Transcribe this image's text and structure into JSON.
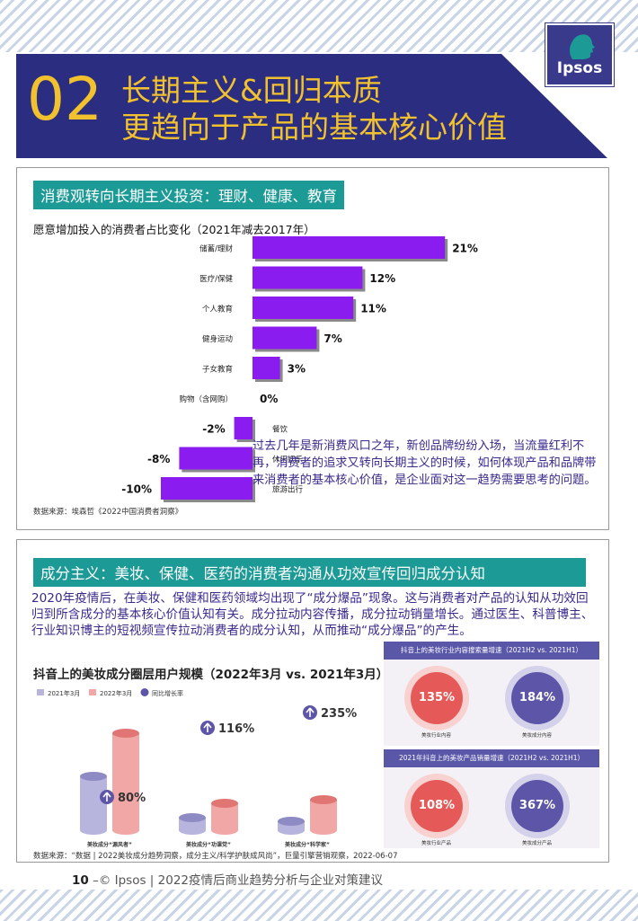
{
  "header": {
    "number": "02",
    "title_line1": "长期主义&回归本质",
    "title_line2": "更趋向于产品的基本核心价值",
    "logo_text": "Ipsos"
  },
  "colors": {
    "banner": "#2b2e80",
    "accent_yellow": "#f2c12e",
    "teal": "#1c9a96",
    "bar_purple": "#8b1cf0",
    "text_purple": "#3a2a8c",
    "red": "#e55a58"
  },
  "panel1": {
    "title": "消费观转向长期主义投资：理财、健康、教育",
    "chart_title": "愿意增加投入的消费者占比变化（2021年减去2017年）",
    "source": "数据来源：埃森哲《2022中国消费者洞察》",
    "paragraph": "过去几年是新消费风口之年，新创品牌纷纷入场，当流量红利不再，消费者的追求又转向长期主义的时候，如何体现产品和品牌带来消费者的基本核心价值，是企业面对这一趋势需要思考的问题。"
  },
  "panel2": {
    "title": "成分主义：美妆、保健、医药的消费者沟通从功效宣传回归成分认知",
    "paragraph": "2020年疫情后，在美妆、保健和医药领域均出现了“成分爆品”现象。这与消费者对产品的认知从功效回归到所含成分的基本核心价值认知有关。成分拉动内容传播，成分拉动销量增长。通过医生、科普博主、行业知识博主的短视频宣传拉动消费者的成分认知，从而推动“成分爆品”的产生。",
    "chart_title": "抖音上的美妆成分圈层用户规模（2022年3月 vs. 2021年3月）",
    "source": "数据来源：“数据 | 2022美妆成分趋势洞察，成分主义/科学护肤成风尚”，巨量引擎营销观察，2022-06-07",
    "info": {
      "head1": "抖音上的美妆行业内容搜索量增速（2021H2 vs. 2021H1）",
      "c1_value": "135%",
      "c1_label": "美妆行业内容",
      "c2_value": "184%",
      "c2_label": "美妆成分内容",
      "head2": "2021年抖音上的美妆产品销量增速（2021H2 vs. 2021H1）",
      "c3_value": "108%",
      "c3_label": "美妆行业产品",
      "c4_value": "367%",
      "c4_label": "美妆成分产品"
    }
  },
  "footer": {
    "page": "10",
    "text": "–© Ipsos | 2022疫情后商业趋势分析与企业对策建议"
  },
  "chart_data": [
    {
      "type": "bar",
      "orientation": "horizontal",
      "title": "愿意增加投入的消费者占比变化（2021年减去2017年）",
      "categories": [
        "储蓄/理财",
        "医疗/保健",
        "个人教育",
        "健身运动",
        "子女教育",
        "购物（含网购）",
        "餐饮",
        "休闲娱乐",
        "旅游出行"
      ],
      "values": [
        21,
        12,
        11,
        7,
        3,
        0,
        -2,
        -8,
        -10
      ],
      "value_labels": [
        "21%",
        "12%",
        "11%",
        "7%",
        "3%",
        "0%",
        "-2%",
        "-8%",
        "-10%"
      ],
      "unit": "%"
    },
    {
      "type": "bar",
      "title": "抖音上的美妆成分圈层用户规模（2022年3月 vs. 2021年3月）",
      "categories": [
        "美妆成分“源风者”",
        "美妆成分“功课党”",
        "美妆成分“科学家”"
      ],
      "series": [
        {
          "name": "2021年3月",
          "values": [
            60,
            14,
            10
          ]
        },
        {
          "name": "2022年3月",
          "values": [
            108,
            30,
            34
          ]
        }
      ],
      "growth": {
        "name": "同比增长率",
        "labels": [
          "80%",
          "116%",
          "235%"
        ],
        "values": [
          80,
          116,
          235
        ]
      },
      "legend": "top-left"
    }
  ]
}
